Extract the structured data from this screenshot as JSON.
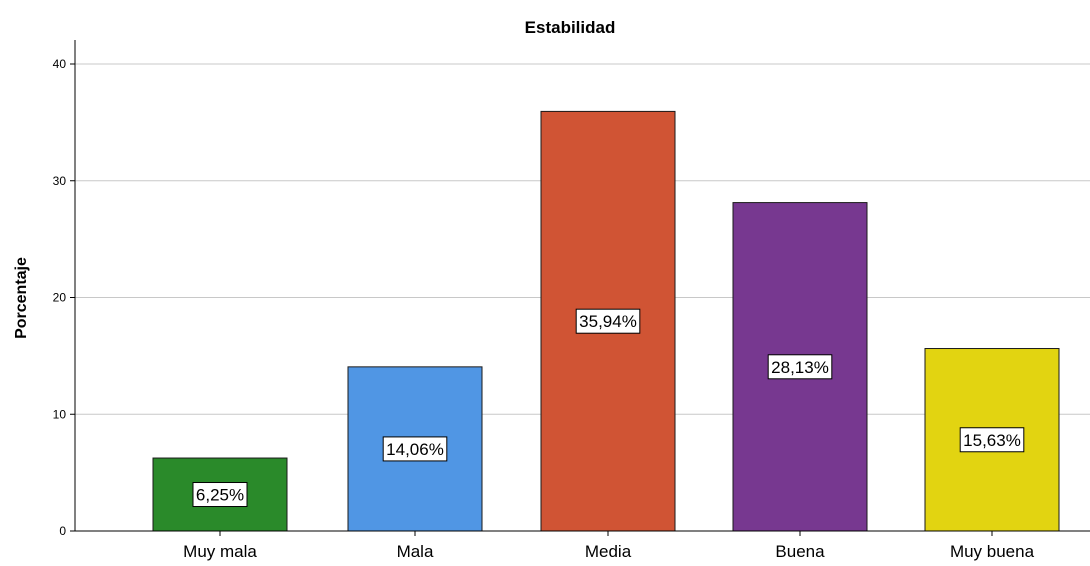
{
  "chart_data": {
    "type": "bar",
    "title": "Estabilidad",
    "xlabel": "",
    "ylabel": "Porcentaje",
    "categories": [
      "Muy mala",
      "Mala",
      "Media",
      "Buena",
      "Muy buena"
    ],
    "values": [
      6.25,
      14.06,
      35.94,
      28.13,
      15.63
    ],
    "data_labels": [
      "6,25%",
      "14,06%",
      "35,94%",
      "28,13%",
      "15,63%"
    ],
    "colors": [
      "#2a8a2a",
      "#5096e4",
      "#d05434",
      "#773890",
      "#e2d411"
    ],
    "ylim": [
      0,
      40
    ],
    "yticks": [
      0,
      10,
      20,
      30,
      40
    ],
    "grid": true,
    "legend": "none"
  }
}
